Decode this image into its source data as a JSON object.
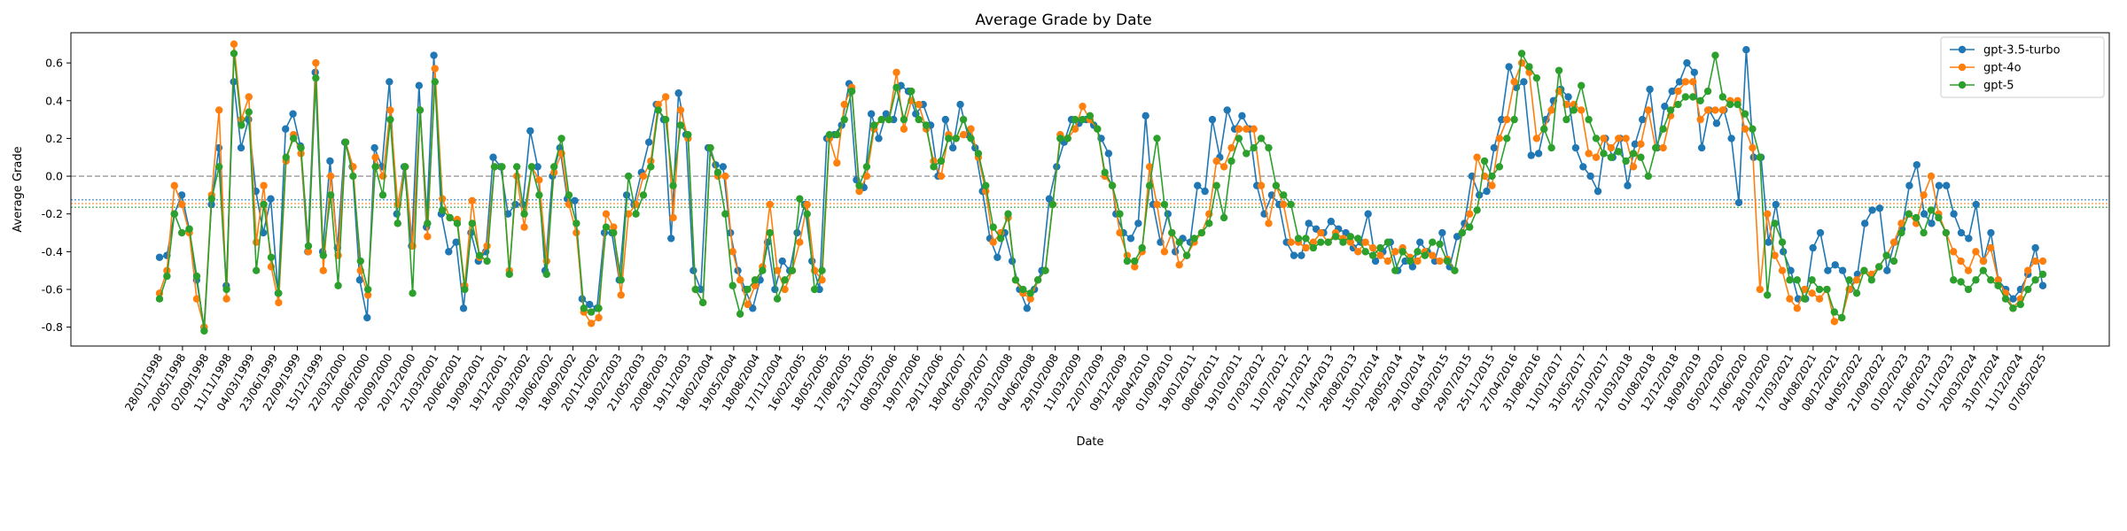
{
  "chart_data": {
    "type": "line",
    "title": "Average Grade by Date",
    "xlabel": "Date",
    "ylabel": "Average Grade",
    "ylim": [
      -0.9,
      0.76
    ],
    "yticks": [
      -0.8,
      -0.6,
      -0.4,
      -0.2,
      0.0,
      0.2,
      0.4,
      0.6
    ],
    "grid": false,
    "legend_position": "top-right",
    "reference_lines": [
      {
        "y": 0.0,
        "style": "dashed",
        "color": "#808080"
      },
      {
        "y": -0.125,
        "style": "dotted",
        "color": "#1f77b4"
      },
      {
        "y": -0.145,
        "style": "dotted",
        "color": "#ff7f0e"
      },
      {
        "y": -0.165,
        "style": "dotted",
        "color": "#2ca02c"
      }
    ],
    "x_tick_labels": [
      "28/01/1998",
      "20/05/1998",
      "02/09/1998",
      "11/11/1998",
      "04/03/1999",
      "23/06/1999",
      "22/09/1999",
      "15/12/1999",
      "22/03/2000",
      "20/06/2000",
      "20/09/2000",
      "20/12/2000",
      "21/03/2001",
      "20/06/2001",
      "19/09/2001",
      "19/12/2001",
      "20/03/2002",
      "19/06/2002",
      "18/09/2002",
      "20/11/2002",
      "19/02/2003",
      "21/05/2003",
      "20/08/2003",
      "19/11/2003",
      "18/02/2004",
      "19/05/2004",
      "18/08/2004",
      "17/11/2004",
      "16/02/2005",
      "18/05/2005",
      "17/08/2005",
      "23/11/2005",
      "08/03/2006",
      "19/07/2006",
      "29/11/2006",
      "18/04/2007",
      "05/09/2007",
      "23/01/2008",
      "04/06/2008",
      "29/10/2008",
      "11/03/2009",
      "22/07/2009",
      "09/12/2009",
      "28/04/2010",
      "01/09/2010",
      "19/01/2011",
      "08/06/2011",
      "19/10/2011",
      "07/03/2012",
      "11/07/2012",
      "28/11/2012",
      "17/04/2013",
      "28/08/2013",
      "15/01/2014",
      "28/05/2014",
      "29/10/2014",
      "04/03/2015",
      "29/07/2015",
      "25/11/2015",
      "27/04/2016",
      "31/08/2016",
      "11/01/2017",
      "31/05/2017",
      "25/10/2017",
      "21/03/2018",
      "01/08/2018",
      "12/12/2018",
      "18/09/2019",
      "05/02/2020",
      "17/06/2020",
      "28/10/2020",
      "17/03/2021",
      "04/08/2021",
      "08/12/2021",
      "04/05/2022",
      "21/09/2022",
      "01/02/2023",
      "21/06/2023",
      "01/11/2023",
      "20/03/2024",
      "31/07/2024",
      "11/12/2024",
      "07/05/2025"
    ],
    "series": [
      {
        "name": "gpt-3.5-turbo",
        "color": "#1f77b4",
        "values": [
          -0.43,
          -0.42,
          -0.2,
          -0.1,
          -0.28,
          -0.55,
          -0.8,
          -0.15,
          0.15,
          -0.58,
          0.5,
          0.15,
          0.3,
          -0.08,
          -0.3,
          -0.12,
          -0.62,
          0.25,
          0.33,
          0.16,
          -0.4,
          0.55,
          -0.4,
          0.08,
          -0.38,
          0.18,
          0.05,
          -0.55,
          -0.75,
          0.15,
          0.05,
          0.5,
          -0.2,
          0.05,
          -0.37,
          0.48,
          -0.27,
          0.64,
          -0.2,
          -0.4,
          -0.35,
          -0.7,
          -0.3,
          -0.45,
          -0.4,
          0.1,
          0.05,
          -0.2,
          -0.15,
          -0.15,
          0.24,
          0.05,
          -0.5,
          0.0,
          0.15,
          -0.12,
          -0.13,
          -0.65,
          -0.68,
          -0.7,
          -0.3,
          -0.3,
          -0.55,
          -0.1,
          -0.15,
          0.02,
          0.18,
          0.38,
          0.3,
          -0.33,
          0.44,
          0.22,
          -0.5,
          -0.6,
          0.15,
          0.06,
          0.05,
          -0.3,
          -0.5,
          -0.6,
          -0.7,
          -0.55,
          -0.35,
          -0.6,
          -0.45,
          -0.5,
          -0.3,
          -0.15,
          -0.45,
          -0.6,
          0.2,
          0.22,
          0.27,
          0.49,
          -0.02,
          -0.06,
          0.33,
          0.2,
          0.33,
          0.3,
          0.48,
          0.45,
          0.33,
          0.38,
          0.27,
          0.0,
          0.3,
          0.15,
          0.38,
          0.22,
          0.15,
          -0.08,
          -0.33,
          -0.43,
          -0.3,
          -0.45,
          -0.6,
          -0.7,
          -0.6,
          -0.5,
          -0.12,
          0.05,
          0.18,
          0.3,
          0.28,
          0.3,
          0.27,
          0.2,
          0.12,
          -0.2,
          -0.3,
          -0.33,
          -0.25,
          0.32,
          -0.15,
          -0.35,
          -0.2,
          -0.4,
          -0.33,
          -0.35,
          -0.05,
          -0.08,
          0.3,
          0.1,
          0.35,
          0.25,
          0.32,
          0.25,
          -0.05,
          -0.2,
          -0.1,
          -0.15,
          -0.35,
          -0.42,
          -0.42,
          -0.25,
          -0.28,
          -0.3,
          -0.24,
          -0.28,
          -0.3,
          -0.38,
          -0.35,
          -0.2,
          -0.45,
          -0.4,
          -0.35,
          -0.5,
          -0.45,
          -0.48,
          -0.35,
          -0.4,
          -0.45,
          -0.3,
          -0.48,
          -0.32,
          -0.25,
          0.0,
          -0.1,
          -0.08,
          0.15,
          0.3,
          0.58,
          0.47,
          0.5,
          0.11,
          0.12,
          0.3,
          0.4,
          0.46,
          0.42,
          0.15,
          0.05,
          0.0,
          -0.08,
          0.2,
          0.1,
          0.2,
          -0.05,
          0.17,
          0.3,
          0.46,
          0.15,
          0.37,
          0.45,
          0.5,
          0.6,
          0.55,
          0.15,
          0.35,
          0.28,
          0.35,
          0.2,
          -0.14,
          0.67,
          0.1,
          0.1,
          -0.35,
          -0.15,
          -0.4,
          -0.5,
          -0.65,
          -0.65,
          -0.38,
          -0.3,
          -0.5,
          -0.47,
          -0.5,
          -0.6,
          -0.52,
          -0.25,
          -0.18,
          -0.17,
          -0.5,
          -0.35,
          -0.28,
          -0.05,
          0.06,
          -0.2,
          -0.25,
          -0.05,
          -0.05,
          -0.2,
          -0.3,
          -0.33,
          -0.15,
          -0.45,
          -0.3,
          -0.55,
          -0.6,
          -0.65,
          -0.6,
          -0.52,
          -0.38,
          -0.58
        ]
      },
      {
        "name": "gpt-4o",
        "color": "#ff7f0e",
        "values": [
          -0.62,
          -0.5,
          -0.05,
          -0.15,
          -0.3,
          -0.65,
          -0.8,
          -0.1,
          0.35,
          -0.65,
          0.7,
          0.3,
          0.42,
          -0.35,
          -0.05,
          -0.48,
          -0.67,
          0.08,
          0.22,
          0.12,
          -0.4,
          0.6,
          -0.5,
          0.0,
          -0.42,
          0.18,
          0.05,
          -0.5,
          -0.63,
          0.1,
          0.0,
          0.35,
          -0.15,
          0.05,
          -0.37,
          0.35,
          -0.32,
          0.57,
          -0.12,
          -0.22,
          -0.23,
          -0.58,
          -0.13,
          -0.43,
          -0.37,
          0.05,
          0.05,
          -0.5,
          0.0,
          -0.27,
          0.05,
          -0.02,
          -0.45,
          0.02,
          0.12,
          -0.15,
          -0.3,
          -0.72,
          -0.78,
          -0.75,
          -0.2,
          -0.27,
          -0.63,
          -0.2,
          -0.15,
          0.0,
          0.08,
          0.38,
          0.42,
          -0.22,
          0.35,
          0.2,
          -0.6,
          -0.67,
          0.15,
          0.0,
          0.0,
          -0.4,
          -0.55,
          -0.68,
          -0.58,
          -0.48,
          -0.15,
          -0.5,
          -0.6,
          -0.5,
          -0.35,
          -0.15,
          -0.5,
          -0.55,
          0.2,
          0.07,
          0.38,
          0.47,
          -0.08,
          0.0,
          0.25,
          0.3,
          0.3,
          0.55,
          0.25,
          0.4,
          0.38,
          0.25,
          0.08,
          0.0,
          0.22,
          0.2,
          0.22,
          0.25,
          0.1,
          -0.08,
          -0.35,
          -0.3,
          -0.22,
          -0.55,
          -0.62,
          -0.65,
          -0.55,
          -0.5,
          -0.15,
          0.22,
          0.2,
          0.25,
          0.37,
          0.3,
          0.25,
          0.0,
          -0.05,
          -0.3,
          -0.42,
          -0.48,
          -0.4,
          0.05,
          -0.15,
          -0.4,
          -0.3,
          -0.47,
          -0.42,
          -0.35,
          -0.3,
          -0.2,
          0.08,
          0.05,
          0.15,
          0.25,
          0.25,
          0.25,
          -0.05,
          -0.25,
          -0.05,
          -0.15,
          -0.35,
          -0.35,
          -0.38,
          -0.35,
          -0.3,
          -0.35,
          -0.3,
          -0.33,
          -0.35,
          -0.4,
          -0.35,
          -0.38,
          -0.42,
          -0.45,
          -0.4,
          -0.38,
          -0.43,
          -0.45,
          -0.4,
          -0.42,
          -0.45,
          -0.44,
          -0.5,
          -0.3,
          -0.2,
          0.1,
          0.0,
          -0.05,
          0.2,
          0.3,
          0.5,
          0.6,
          0.55,
          0.2,
          0.25,
          0.35,
          0.45,
          0.38,
          0.38,
          0.35,
          0.12,
          0.1,
          0.2,
          0.15,
          0.2,
          0.2,
          0.05,
          0.17,
          0.35,
          0.15,
          0.15,
          0.32,
          0.45,
          0.5,
          0.5,
          0.3,
          0.35,
          0.35,
          0.35,
          0.4,
          0.4,
          0.25,
          0.15,
          -0.6,
          -0.2,
          -0.42,
          -0.5,
          -0.65,
          -0.7,
          -0.6,
          -0.62,
          -0.65,
          -0.6,
          -0.77,
          -0.75,
          -0.6,
          -0.55,
          -0.5,
          -0.52,
          -0.48,
          -0.42,
          -0.35,
          -0.25,
          -0.2,
          -0.25,
          -0.1,
          0.0,
          -0.2,
          -0.3,
          -0.4,
          -0.45,
          -0.5,
          -0.4,
          -0.45,
          -0.38,
          -0.55,
          -0.62,
          -0.7,
          -0.65,
          -0.5,
          -0.45,
          -0.45
        ]
      },
      {
        "name": "gpt-5",
        "color": "#2ca02c",
        "values": [
          -0.65,
          -0.53,
          -0.2,
          -0.3,
          -0.28,
          -0.53,
          -0.82,
          -0.12,
          0.05,
          -0.6,
          0.65,
          0.27,
          0.34,
          -0.5,
          -0.15,
          -0.43,
          -0.62,
          0.1,
          0.2,
          0.15,
          -0.37,
          0.52,
          -0.42,
          -0.1,
          -0.58,
          0.18,
          0.0,
          -0.45,
          -0.6,
          0.05,
          -0.1,
          0.3,
          -0.25,
          0.05,
          -0.62,
          0.35,
          -0.25,
          0.5,
          -0.18,
          -0.22,
          -0.25,
          -0.6,
          -0.25,
          -0.42,
          -0.45,
          0.05,
          0.05,
          -0.52,
          0.05,
          -0.2,
          0.05,
          -0.1,
          -0.52,
          0.05,
          0.2,
          -0.1,
          -0.25,
          -0.7,
          -0.72,
          -0.7,
          -0.27,
          -0.3,
          -0.55,
          0.0,
          -0.2,
          -0.1,
          0.05,
          0.35,
          0.3,
          -0.05,
          0.27,
          0.22,
          -0.6,
          -0.67,
          0.15,
          0.02,
          -0.2,
          -0.58,
          -0.73,
          -0.6,
          -0.55,
          -0.5,
          -0.3,
          -0.65,
          -0.55,
          -0.5,
          -0.12,
          -0.2,
          -0.6,
          -0.5,
          0.22,
          0.22,
          0.3,
          0.45,
          -0.05,
          0.05,
          0.27,
          0.3,
          0.3,
          0.47,
          0.3,
          0.45,
          0.3,
          0.27,
          0.05,
          0.08,
          0.2,
          0.2,
          0.3,
          0.2,
          0.12,
          -0.05,
          -0.27,
          -0.33,
          -0.2,
          -0.55,
          -0.6,
          -0.62,
          -0.55,
          -0.5,
          -0.15,
          0.2,
          0.2,
          0.3,
          0.3,
          0.32,
          0.25,
          0.02,
          -0.05,
          -0.2,
          -0.45,
          -0.45,
          -0.38,
          -0.05,
          0.2,
          -0.15,
          -0.3,
          -0.35,
          -0.42,
          -0.33,
          -0.3,
          -0.25,
          -0.05,
          -0.22,
          0.08,
          0.2,
          0.12,
          0.15,
          0.2,
          0.15,
          -0.05,
          -0.1,
          -0.15,
          -0.33,
          -0.33,
          -0.38,
          -0.35,
          -0.35,
          -0.32,
          -0.35,
          -0.32,
          -0.33,
          -0.4,
          -0.42,
          -0.38,
          -0.35,
          -0.5,
          -0.4,
          -0.45,
          -0.4,
          -0.42,
          -0.35,
          -0.36,
          -0.45,
          -0.5,
          -0.3,
          -0.27,
          -0.18,
          0.08,
          0.0,
          0.05,
          0.2,
          0.3,
          0.65,
          0.58,
          0.52,
          0.25,
          0.15,
          0.56,
          0.3,
          0.35,
          0.48,
          0.3,
          0.2,
          0.12,
          0.1,
          0.13,
          0.08,
          0.12,
          0.1,
          0.0,
          0.15,
          0.25,
          0.35,
          0.38,
          0.42,
          0.42,
          0.4,
          0.45,
          0.64,
          0.42,
          0.38,
          0.38,
          0.33,
          0.25,
          0.1,
          -0.63,
          -0.25,
          -0.35,
          -0.55,
          -0.55,
          -0.65,
          -0.55,
          -0.6,
          -0.6,
          -0.72,
          -0.75,
          -0.55,
          -0.62,
          -0.5,
          -0.55,
          -0.48,
          -0.42,
          -0.45,
          -0.3,
          -0.2,
          -0.22,
          -0.3,
          -0.18,
          -0.22,
          -0.3,
          -0.55,
          -0.56,
          -0.6,
          -0.55,
          -0.5,
          -0.55,
          -0.58,
          -0.65,
          -0.7,
          -0.68,
          -0.6,
          -0.55,
          -0.52
        ]
      }
    ]
  }
}
